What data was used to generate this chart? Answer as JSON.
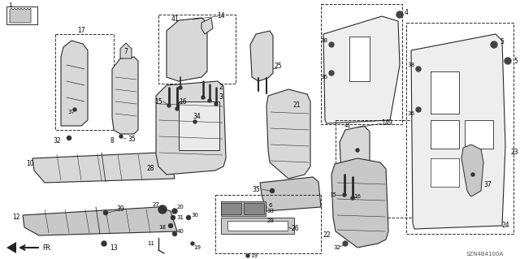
{
  "diagram_code": "SZN4B4100A",
  "bg_color": "#ffffff",
  "lc": "#2a2a2a",
  "tc": "#000000",
  "gray_light": "#d8d8d8",
  "gray_mid": "#c8c8c8",
  "gray_dark": "#b0b0b0"
}
